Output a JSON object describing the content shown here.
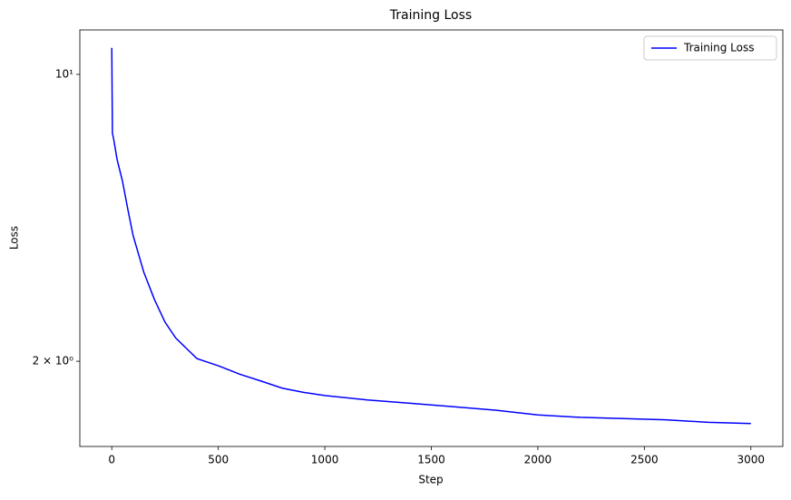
{
  "chart_data": {
    "type": "line",
    "title": "Training Loss",
    "x_label": "Step",
    "y_label": "Loss",
    "x": [
      0,
      3,
      10,
      25,
      50,
      75,
      100,
      150,
      200,
      250,
      300,
      350,
      400,
      500,
      600,
      700,
      800,
      900,
      1000,
      1200,
      1400,
      1600,
      1800,
      2000,
      2200,
      2400,
      2600,
      2800,
      3000
    ],
    "series": [
      {
        "name": "Training Loss",
        "color": "#0000ff",
        "values": [
          11.6,
          7.2,
          6.9,
          6.2,
          5.5,
          4.7,
          4.05,
          3.3,
          2.83,
          2.49,
          2.28,
          2.15,
          2.03,
          1.95,
          1.86,
          1.79,
          1.72,
          1.68,
          1.65,
          1.61,
          1.58,
          1.55,
          1.52,
          1.48,
          1.46,
          1.45,
          1.44,
          1.42,
          1.41
        ]
      }
    ],
    "xlim": [
      -150,
      3150
    ],
    "xticks": [
      0,
      500,
      1000,
      1500,
      2000,
      2500,
      3000
    ],
    "ylim": [
      1.24,
      12.83
    ],
    "yticks": [
      {
        "value": 2,
        "label": "2 × 10⁰"
      },
      {
        "value": 10,
        "label": "10¹"
      }
    ],
    "log_y": true,
    "legend": "upper right"
  }
}
